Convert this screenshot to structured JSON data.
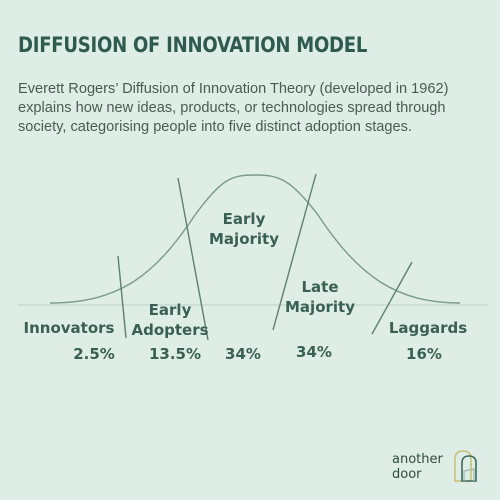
{
  "title": "DIFFUSION OF INNOVATION MODEL",
  "intro": "Everett Rogers’ Diffusion of Innovation Theory (developed in 1962) explains how new ideas, products, or technologies spread through society, categorising people into five distinct adoption stages.",
  "segments": [
    {
      "label_line1": "Innovators",
      "label_line2": "",
      "percent": "2.5%"
    },
    {
      "label_line1": "Early",
      "label_line2": "Adopters",
      "percent": "13.5%"
    },
    {
      "label_line1": "Early",
      "label_line2": "Majority",
      "percent": "34%"
    },
    {
      "label_line1": "Late",
      "label_line2": "Majority",
      "percent": "34%"
    },
    {
      "label_line1": "Laggards",
      "label_line2": "",
      "percent": "16%"
    }
  ],
  "logo": {
    "line1": "another",
    "line2": "door"
  },
  "colors": {
    "background": "#deede5",
    "title": "#2f5a4f",
    "curve": "#7a9a90",
    "labels": "#3a5f55"
  }
}
